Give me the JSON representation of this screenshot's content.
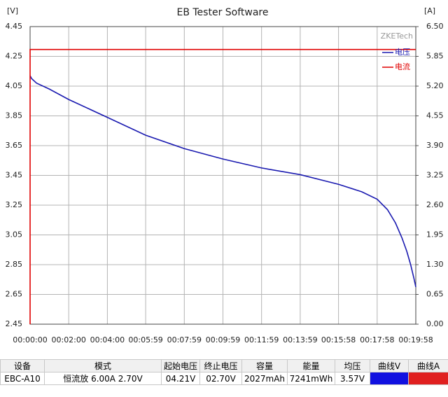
{
  "chart_data": {
    "type": "line",
    "title": "EB Tester Software",
    "y_label": "[V]",
    "y2_label": "[A]",
    "watermark": "ZKETech",
    "xlim": [
      0,
      1198
    ],
    "xticks": [
      {
        "value": 0,
        "label": "00:00:00"
      },
      {
        "value": 120,
        "label": "00:02:00"
      },
      {
        "value": 240,
        "label": "00:04:00"
      },
      {
        "value": 359,
        "label": "00:05:59"
      },
      {
        "value": 479,
        "label": "00:07:59"
      },
      {
        "value": 599,
        "label": "00:09:59"
      },
      {
        "value": 719,
        "label": "00:11:59"
      },
      {
        "value": 839,
        "label": "00:13:59"
      },
      {
        "value": 958,
        "label": "00:15:58"
      },
      {
        "value": 1078,
        "label": "00:17:58"
      },
      {
        "value": 1198,
        "label": "00:19:58"
      }
    ],
    "ylim": [
      2.45,
      4.45
    ],
    "yticks": [
      2.45,
      2.65,
      2.85,
      3.05,
      3.25,
      3.45,
      3.65,
      3.85,
      4.05,
      4.25,
      4.45
    ],
    "y2lim": [
      0,
      6.5
    ],
    "y2ticks": [
      {
        "value": 0,
        "label": "0.00"
      },
      0.65,
      {
        "value": 1.3,
        "label": "1.30"
      },
      1.95,
      {
        "value": 2.6,
        "label": "2.60"
      },
      3.25,
      {
        "value": 3.9,
        "label": "3.90"
      },
      4.55,
      {
        "value": 5.2,
        "label": "5.20"
      },
      5.85,
      {
        "value": 6.5,
        "label": "6.50"
      }
    ],
    "grid": true,
    "legend": "top-right",
    "series": [
      {
        "name": "电压",
        "color": "#1a1ab0",
        "x": [
          0,
          5,
          20,
          60,
          120,
          240,
          359,
          479,
          599,
          719,
          839,
          958,
          1030,
          1078,
          1110,
          1135,
          1155,
          1170,
          1182,
          1192,
          1198
        ],
        "values": [
          4.12,
          4.1,
          4.07,
          4.03,
          3.96,
          3.84,
          3.72,
          3.63,
          3.56,
          3.5,
          3.455,
          3.39,
          3.34,
          3.29,
          3.22,
          3.13,
          3.03,
          2.94,
          2.85,
          2.76,
          2.7
        ]
      },
      {
        "name": "电流",
        "color": "#e00000",
        "axis": "y2",
        "x": [
          0,
          0,
          1198
        ],
        "values": [
          0,
          6.0,
          6.0
        ]
      }
    ]
  },
  "table": {
    "headers": [
      "设备",
      "模式",
      "起始电压",
      "终止电压",
      "容量",
      "能量",
      "均压",
      "曲线V",
      "曲线A"
    ],
    "rows": [
      [
        "EBC-A10",
        "恒流放  6.00A  2.70V",
        "04.21V",
        "02.70V",
        "2027mAh",
        "7241mWh",
        "3.57V",
        "",
        ""
      ]
    ]
  }
}
